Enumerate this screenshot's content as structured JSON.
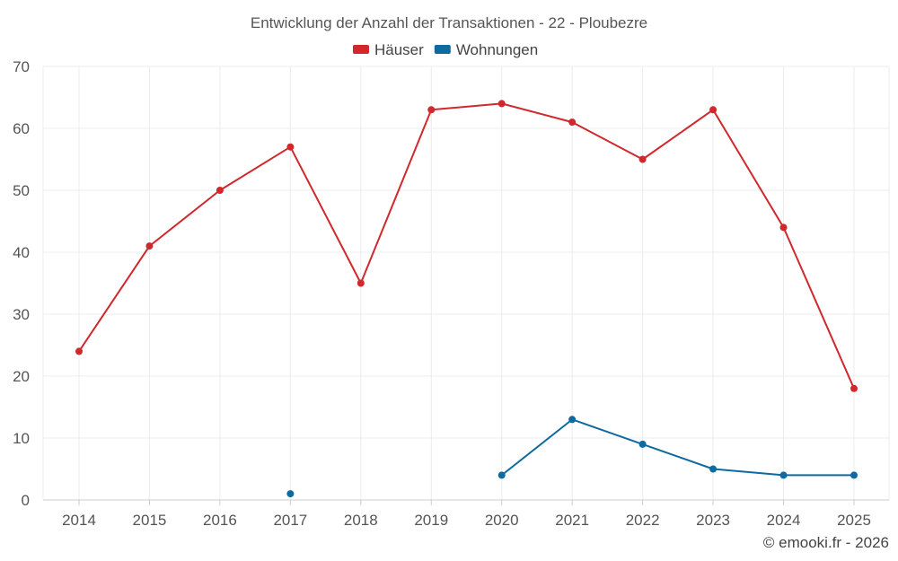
{
  "chart_data": {
    "type": "line",
    "title": "Entwicklung der Anzahl der Transaktionen - 22 - Ploubezre",
    "categories": [
      "2014",
      "2015",
      "2016",
      "2017",
      "2018",
      "2019",
      "2020",
      "2021",
      "2022",
      "2023",
      "2024",
      "2025"
    ],
    "ylim": [
      0,
      70
    ],
    "yticks": [
      0,
      10,
      20,
      30,
      40,
      50,
      60,
      70
    ],
    "grid": true,
    "legend_position": "top-center",
    "xlabel": "",
    "ylabel": "",
    "series": [
      {
        "name": "Häuser",
        "color": "#d0282c",
        "values": [
          24,
          41,
          50,
          57,
          35,
          63,
          64,
          61,
          55,
          63,
          44,
          18
        ]
      },
      {
        "name": "Wohnungen",
        "color": "#0f6aa0",
        "values": [
          null,
          null,
          null,
          1,
          null,
          null,
          4,
          13,
          9,
          5,
          4,
          4
        ]
      }
    ]
  },
  "credit": "© emooki.fr - 2026"
}
